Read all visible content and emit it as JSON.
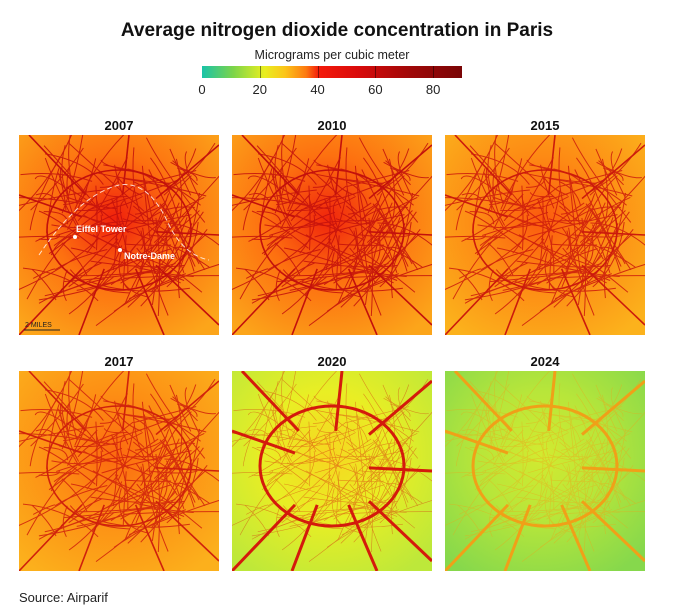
{
  "title": "Average nitrogen dioxide concentration in Paris",
  "legend": {
    "title": "Micrograms per cubic meter",
    "ticks": [
      "0",
      "20",
      "40",
      "60",
      "80"
    ],
    "max": 90,
    "colors": [
      "#19c3a8",
      "#7cd44a",
      "#e8ef20",
      "#fcc419",
      "#fd7a10",
      "#f41a0a",
      "#d90a0a",
      "#a00808",
      "#7a0506"
    ]
  },
  "panels": [
    {
      "year": "2007",
      "edge": "#fca51a",
      "mid": "#fd7010",
      "core": "#f0200c",
      "road": "#c3100c"
    },
    {
      "year": "2010",
      "edge": "#fca51a",
      "mid": "#fd7010",
      "core": "#f0250c",
      "road": "#c3100c"
    },
    {
      "year": "2015",
      "edge": "#fcb21c",
      "mid": "#fd8a14",
      "core": "#fb5a0e",
      "road": "#cc1a0c"
    },
    {
      "year": "2017",
      "edge": "#fcb01c",
      "mid": "#fd8f14",
      "core": "#fb6a10",
      "road": "#d0200c"
    },
    {
      "year": "2020",
      "edge": "#bde83a",
      "mid": "#e9ee24",
      "core": "#f6d620",
      "road": "#d41a0c"
    },
    {
      "year": "2024",
      "edge": "#86d84c",
      "mid": "#b8e63a",
      "core": "#d2ea30",
      "road": "#f0a018"
    }
  ],
  "annotations": {
    "eiffel": "Eiffel Tower",
    "notre_dame": "Notre-Dame",
    "scale": "2 MILES"
  },
  "source": "Source: Airparif"
}
